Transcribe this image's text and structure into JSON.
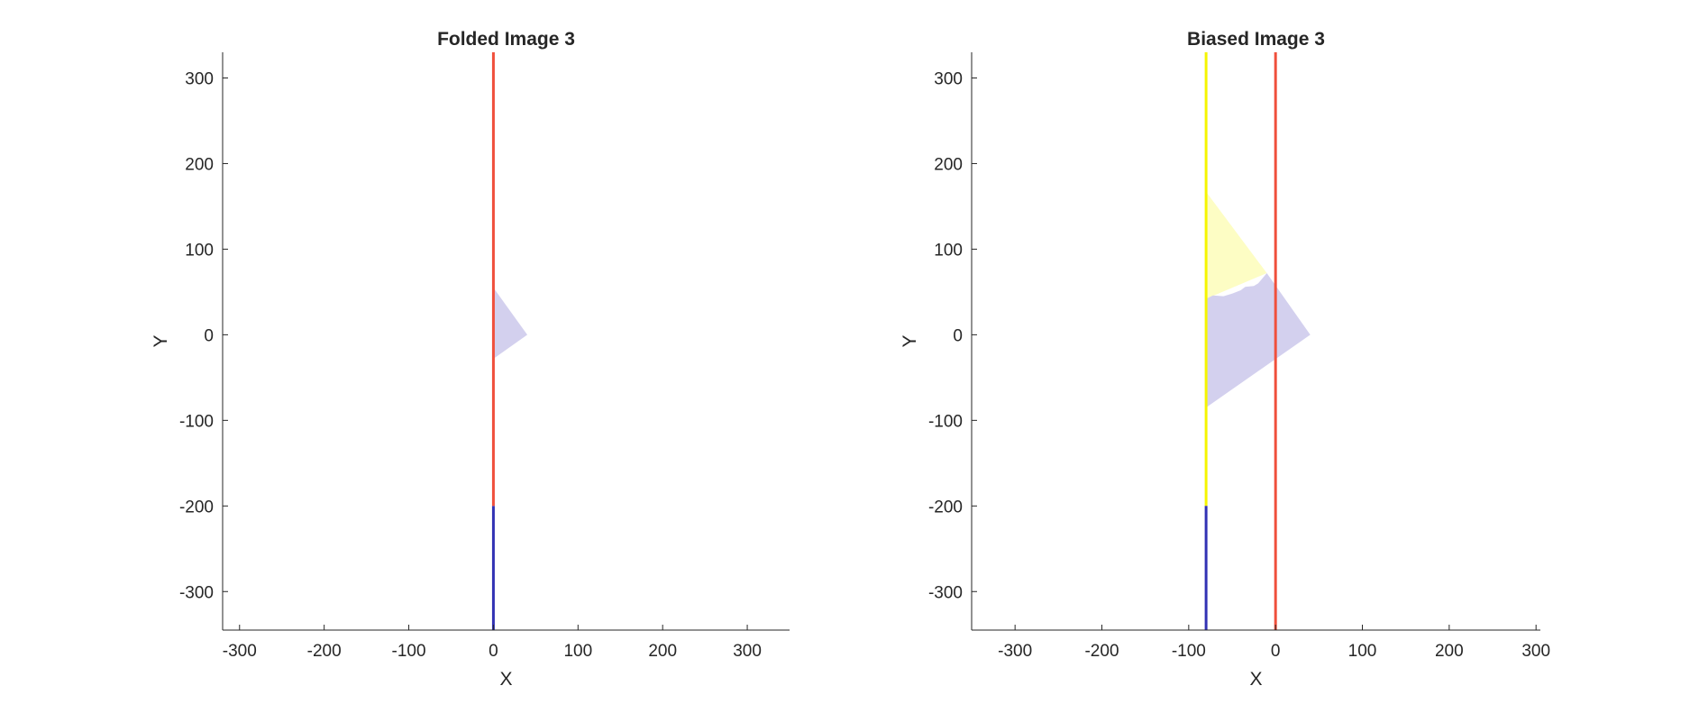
{
  "chart_data": [
    {
      "type": "area",
      "title": "Folded Image 3",
      "xlabel": "X",
      "ylabel": "Y",
      "xlim": [
        -320,
        350
      ],
      "ylim": [
        -345,
        330
      ],
      "xticks": [
        -300,
        -200,
        -100,
        0,
        100,
        200,
        300
      ],
      "yticks": [
        -300,
        -200,
        -100,
        0,
        100,
        200,
        300
      ],
      "grid": false,
      "series": [
        {
          "kind": "polygon",
          "color": "#d3d0ee",
          "points": [
            [
              0,
              55
            ],
            [
              40,
              0
            ],
            [
              0,
              -28
            ]
          ]
        },
        {
          "kind": "vline",
          "color": "#3232b4",
          "x": 0,
          "y": [
            -345,
            -200
          ]
        },
        {
          "kind": "vline",
          "color": "#f0503c",
          "x": 0,
          "y": [
            -200,
            330
          ]
        }
      ]
    },
    {
      "type": "area",
      "title": "Biased Image 3",
      "xlabel": "X",
      "ylabel": "Y",
      "xlim": [
        -350,
        305
      ],
      "ylim": [
        -345,
        330
      ],
      "xticks": [
        -300,
        -200,
        -100,
        0,
        100,
        200,
        300
      ],
      "yticks": [
        -300,
        -200,
        -100,
        0,
        100,
        200,
        300
      ],
      "grid": false,
      "series": [
        {
          "kind": "polygon",
          "color": "#fdfdc4",
          "points": [
            [
              -80,
              167
            ],
            [
              -10,
              72
            ],
            [
              -80,
              42
            ]
          ]
        },
        {
          "kind": "polygon",
          "color": "#d3d0ee",
          "points": [
            [
              -80,
              42
            ],
            [
              -72,
              46
            ],
            [
              -60,
              45
            ],
            [
              -50,
              48
            ],
            [
              -40,
              52
            ],
            [
              -35,
              56
            ],
            [
              -25,
              57
            ],
            [
              -20,
              60
            ],
            [
              -10,
              72
            ],
            [
              40,
              0
            ],
            [
              -80,
              -85
            ]
          ]
        },
        {
          "kind": "vline",
          "color": "#f5f500",
          "x": -80,
          "y": [
            -200,
            330
          ]
        },
        {
          "kind": "vline",
          "color": "#3232b4",
          "x": -80,
          "y": [
            -345,
            -200
          ]
        },
        {
          "kind": "vline",
          "color": "#f0503c",
          "x": 0,
          "y": [
            -345,
            330
          ]
        }
      ]
    }
  ]
}
